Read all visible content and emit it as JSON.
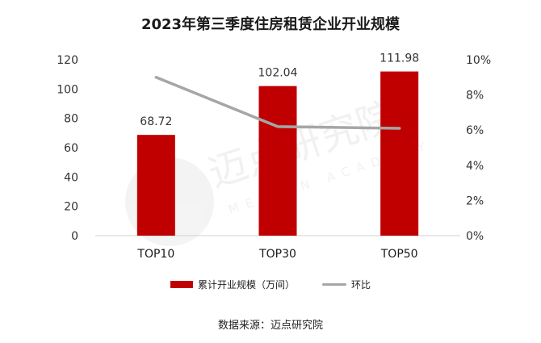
{
  "colors": {
    "bar": "#c00000",
    "line": "#a6a6a6",
    "axis": "#d0d0d0",
    "text": "#333333"
  },
  "watermark": {
    "cn": "迈点研究院",
    "en": "MEADIN ACADEMY"
  },
  "legend": {
    "bar_label": "累计开业规模（万间）",
    "line_label": "环比"
  },
  "source": "数据来源：迈点研究院",
  "chart_data": {
    "type": "bar",
    "title": "2023年第三季度住房租赁企业开业规模",
    "categories": [
      "TOP10",
      "TOP30",
      "TOP50"
    ],
    "series": [
      {
        "name": "累计开业规模（万间）",
        "type": "bar",
        "axis": "left",
        "values": [
          68.72,
          102.04,
          111.98
        ]
      },
      {
        "name": "环比",
        "type": "line",
        "axis": "right",
        "values": [
          9.0,
          6.2,
          6.1
        ],
        "unit": "%"
      }
    ],
    "ylim": [
      0,
      120
    ],
    "yticks": [
      0,
      20,
      40,
      60,
      80,
      100,
      120
    ],
    "y2lim": [
      0,
      10
    ],
    "y2ticks": [
      "0%",
      "2%",
      "4%",
      "6%",
      "8%",
      "10%"
    ],
    "data_labels": [
      "68.72",
      "102.04",
      "111.98"
    ],
    "grid": false,
    "legend_position": "bottom"
  }
}
